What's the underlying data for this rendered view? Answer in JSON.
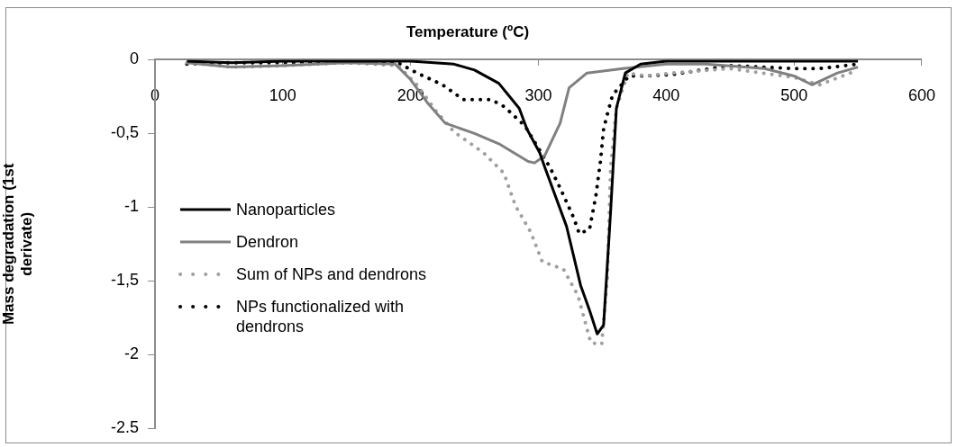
{
  "chart_data": {
    "type": "line",
    "xlabel": "Temperature (ºC)",
    "ylabel": "Mass degradation (1st derivate)",
    "xlim": [
      0,
      600
    ],
    "xticks": [
      0,
      100,
      200,
      300,
      400,
      500,
      600
    ],
    "ylim": [
      -2.5,
      0
    ],
    "yticks": [
      {
        "value": 0,
        "label": "0"
      },
      {
        "value": -0.5,
        "label": "-0,5"
      },
      {
        "value": -1,
        "label": "-1"
      },
      {
        "value": -1.5,
        "label": "-1,5"
      },
      {
        "value": -2,
        "label": "-2"
      },
      {
        "value": -2.5,
        "label": "-2.5"
      }
    ],
    "grid": false,
    "legend": "left",
    "marker": "none",
    "series": [
      {
        "name": "Nanoparticles",
        "color": "#000000",
        "line_style": "solid",
        "x": [
          25,
          60,
          100,
          150,
          200,
          234,
          250,
          269,
          285,
          291,
          301,
          305,
          322,
          333,
          340,
          346,
          351,
          356.5,
          361,
          368,
          380,
          400,
          450,
          500,
          550
        ],
        "values": [
          -0.01,
          -0.02,
          -0.01,
          -0.01,
          -0.01,
          -0.03,
          -0.07,
          -0.16,
          -0.33,
          -0.47,
          -0.63,
          -0.73,
          -1.13,
          -1.53,
          -1.7,
          -1.86,
          -1.8,
          -1.03,
          -0.33,
          -0.09,
          -0.03,
          -0.01,
          -0.01,
          -0.01,
          -0.01
        ]
      },
      {
        "name": "Dendron",
        "color": "#808080",
        "line_style": "solid",
        "x": [
          25,
          60,
          100,
          150,
          188,
          199.5,
          213,
          227,
          250,
          269,
          292,
          297,
          305,
          317,
          324,
          338,
          366,
          400,
          431,
          477,
          500,
          514,
          534,
          550
        ],
        "values": [
          -0.02,
          -0.05,
          -0.04,
          -0.02,
          -0.03,
          -0.13,
          -0.29,
          -0.43,
          -0.5,
          -0.57,
          -0.69,
          -0.7,
          -0.65,
          -0.43,
          -0.19,
          -0.09,
          -0.06,
          -0.03,
          -0.03,
          -0.06,
          -0.11,
          -0.17,
          -0.09,
          -0.05
        ]
      },
      {
        "name": "Sum of NPs and dendrons",
        "color": "#a0a0a0",
        "line_style": "dotted",
        "x": [
          25,
          60,
          100,
          150,
          190,
          205,
          220,
          234,
          257,
          273,
          282,
          294,
          303,
          319.5,
          331,
          341,
          349.5,
          354,
          356.5,
          361,
          370,
          384,
          405,
          450,
          500,
          520,
          550
        ],
        "values": [
          -0.02,
          -0.05,
          -0.04,
          -0.02,
          -0.04,
          -0.17,
          -0.35,
          -0.49,
          -0.63,
          -0.77,
          -0.99,
          -1.17,
          -1.37,
          -1.42,
          -1.6,
          -1.92,
          -1.93,
          -1.47,
          -0.73,
          -0.33,
          -0.09,
          -0.11,
          -0.09,
          -0.06,
          -0.12,
          -0.17,
          -0.07
        ]
      },
      {
        "name": "NPs functionalized with dendrons",
        "color": "#000000",
        "line_style": "dotted",
        "x": [
          25,
          60,
          100,
          150,
          190,
          205,
          225,
          241,
          263,
          273.5,
          289.5,
          309,
          317,
          327.5,
          332,
          340,
          345,
          348.5,
          351,
          354.5,
          358,
          371,
          384,
          405,
          450,
          500,
          520,
          550
        ],
        "values": [
          -0.03,
          -0.02,
          -0.02,
          -0.02,
          -0.02,
          -0.09,
          -0.17,
          -0.27,
          -0.27,
          -0.32,
          -0.45,
          -0.73,
          -0.87,
          -1.07,
          -1.18,
          -1.15,
          -0.92,
          -0.69,
          -0.47,
          -0.35,
          -0.24,
          -0.11,
          -0.11,
          -0.1,
          -0.04,
          -0.06,
          -0.06,
          -0.03
        ]
      }
    ]
  }
}
